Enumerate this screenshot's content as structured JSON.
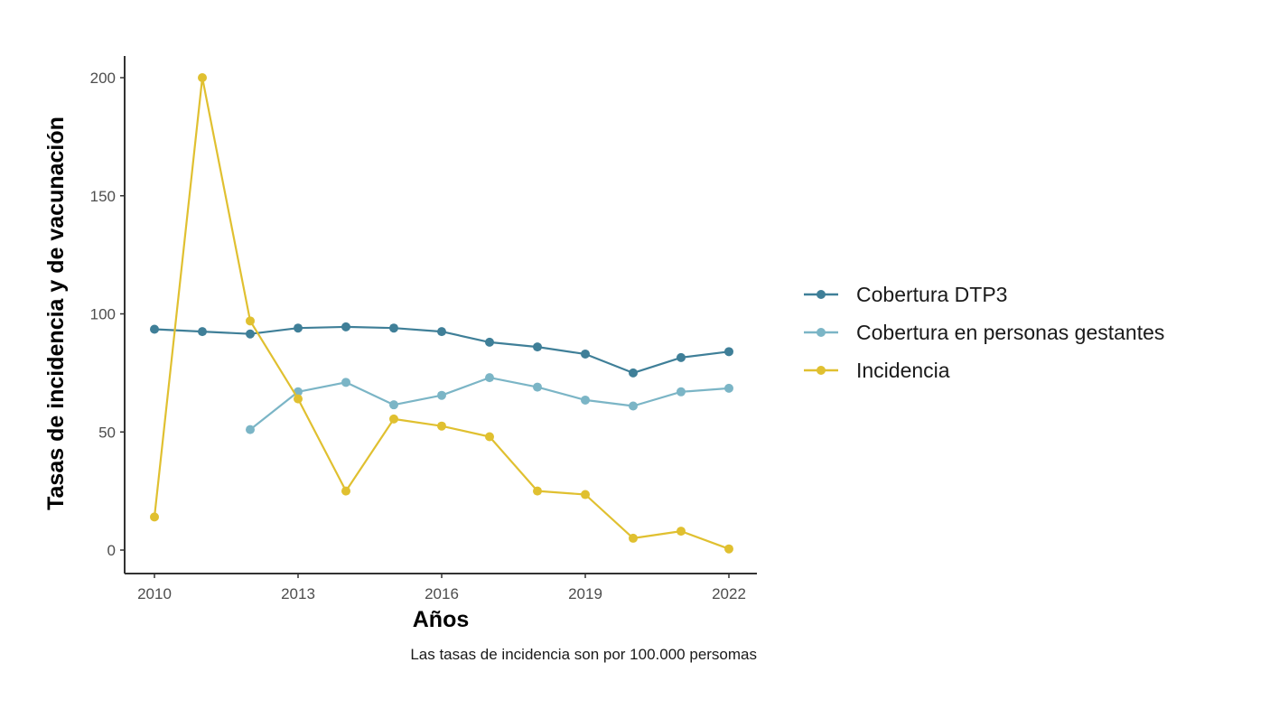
{
  "chart_data": {
    "type": "line",
    "xlabel": "Años",
    "ylabel": "Tasas de incidencia y de vacunación",
    "caption": "Las tasas de incidencia son por 100.000 persomas",
    "x": [
      2010,
      2011,
      2012,
      2013,
      2014,
      2015,
      2016,
      2017,
      2018,
      2019,
      2020,
      2021,
      2022
    ],
    "xlim": [
      2010,
      2022
    ],
    "ylim": [
      0,
      200
    ],
    "x_ticks": [
      "2010",
      "2013",
      "2016",
      "2019",
      "2022"
    ],
    "y_ticks": [
      "0",
      "50",
      "100",
      "150",
      "200"
    ],
    "grid": false,
    "legend_position": "right",
    "series": [
      {
        "name": "Cobertura DTP3",
        "color": "#3f7f98",
        "values": [
          93.5,
          92.5,
          91.5,
          94,
          94.5,
          94,
          92.5,
          88,
          86,
          83,
          75,
          81.5,
          84
        ]
      },
      {
        "name": "Cobertura en personas gestantes",
        "color": "#7bb5c6",
        "values": [
          null,
          null,
          51,
          67,
          71,
          61.5,
          65.5,
          73,
          69,
          63.5,
          61,
          67,
          68.5
        ]
      },
      {
        "name": "Incidencia",
        "color": "#e0c030",
        "values": [
          14,
          200,
          97,
          64,
          25,
          55.5,
          52.5,
          48,
          25,
          23.5,
          5,
          8,
          0.5
        ]
      }
    ]
  }
}
